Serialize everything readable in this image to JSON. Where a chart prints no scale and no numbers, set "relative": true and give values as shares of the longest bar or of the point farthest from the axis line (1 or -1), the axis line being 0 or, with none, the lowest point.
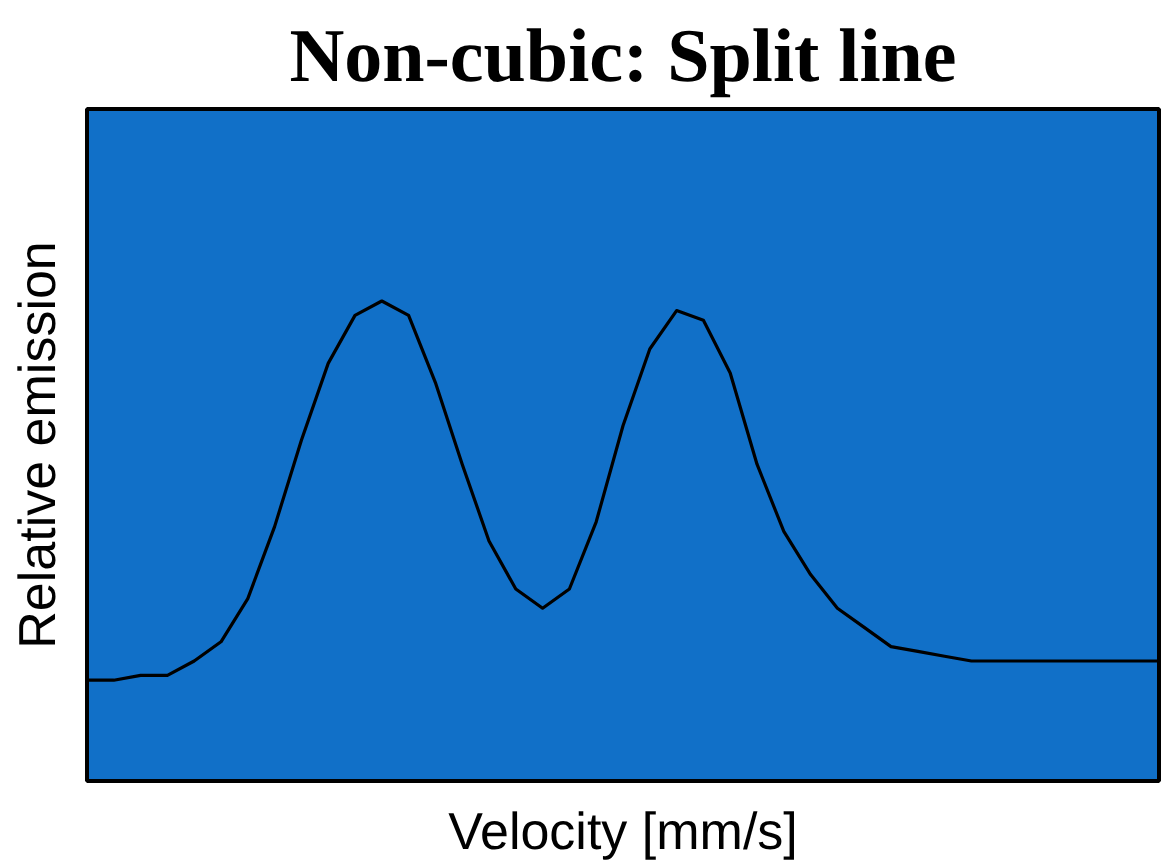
{
  "chart_data": {
    "type": "line",
    "title": "Non-cubic: Split line",
    "xlabel": "Velocity [mm/s]",
    "ylabel": "Relative emission",
    "relative": true,
    "categories": [
      null,
      null,
      null,
      null,
      null,
      null,
      null,
      null,
      null,
      null,
      null,
      null,
      null,
      null,
      null,
      null,
      null,
      null,
      null,
      null,
      null,
      null,
      null,
      null,
      null,
      null,
      null,
      null,
      null,
      null,
      null,
      null,
      null,
      null,
      null,
      null,
      null,
      null,
      null,
      null,
      null
    ],
    "series": [
      {
        "color": "#000000",
        "values": [
          0.21,
          0.21,
          0.22,
          0.22,
          0.25,
          0.29,
          0.38,
          0.53,
          0.71,
          0.87,
          0.97,
          1.0,
          0.97,
          0.83,
          0.66,
          0.5,
          0.4,
          0.36,
          0.4,
          0.54,
          0.74,
          0.9,
          0.98,
          0.96,
          0.85,
          0.66,
          0.52,
          0.43,
          0.36,
          0.32,
          0.28,
          0.27,
          0.26,
          0.25,
          0.25,
          0.25,
          0.25,
          0.25,
          0.25,
          0.25,
          0.25
        ]
      }
    ]
  }
}
